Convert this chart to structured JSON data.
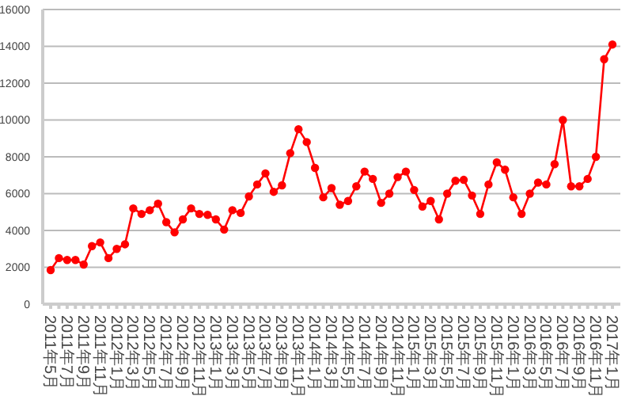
{
  "chart_data": {
    "type": "line",
    "categories": [
      "2011年5月",
      null,
      "2011年7月",
      null,
      "2011年9月",
      null,
      "2011年11月",
      null,
      "2012年1月",
      null,
      "2012年3月",
      null,
      "2012年5月",
      null,
      "2012年7月",
      null,
      "2012年9月",
      null,
      "2012年11月",
      null,
      "2013年1月",
      null,
      "2013年3月",
      null,
      "2013年5月",
      null,
      "2013年7月",
      null,
      "2013年9月",
      null,
      "2013年11月",
      null,
      "2014年1月",
      null,
      "2014年3月",
      null,
      "2014年5月",
      null,
      "2014年7月",
      null,
      "2014年9月",
      null,
      "2014年11月",
      null,
      "2015年1月",
      null,
      "2015年3月",
      null,
      "2015年5月",
      null,
      "2015年7月",
      null,
      "2015年9月",
      null,
      "2015年11月",
      null,
      "2016年1月",
      null,
      "2016年3月",
      null,
      "2016年5月",
      null,
      "2016年7月",
      null,
      "2016年9月",
      null,
      "2016年11月",
      null,
      "2017年1月"
    ],
    "series": [
      {
        "color": "#ff0000",
        "values": [
          1850,
          2500,
          2400,
          2400,
          2150,
          3150,
          3350,
          2500,
          3000,
          3250,
          5200,
          4900,
          5100,
          5450,
          4450,
          3900,
          4600,
          5200,
          4900,
          4850,
          4600,
          4050,
          5100,
          4950,
          5850,
          6500,
          7100,
          6100,
          6450,
          8200,
          9500,
          8800,
          7400,
          5800,
          6300,
          5400,
          5600,
          6400,
          7200,
          6800,
          5500,
          6000,
          6900,
          7200,
          6200,
          5300,
          5600,
          4600,
          6000,
          6700,
          6750,
          5900,
          4900,
          6500,
          7700,
          7300,
          5800,
          4900,
          6000,
          6600,
          6500,
          7600,
          10000,
          6400,
          6400,
          6800,
          8000,
          13300,
          14100
        ]
      }
    ],
    "ylim": [
      0,
      16000
    ],
    "yticks": [
      0,
      2000,
      4000,
      6000,
      8000,
      10000,
      12000,
      14000,
      16000
    ],
    "grid": "y",
    "legend": false,
    "marker": "circle",
    "line_style": "solid"
  }
}
